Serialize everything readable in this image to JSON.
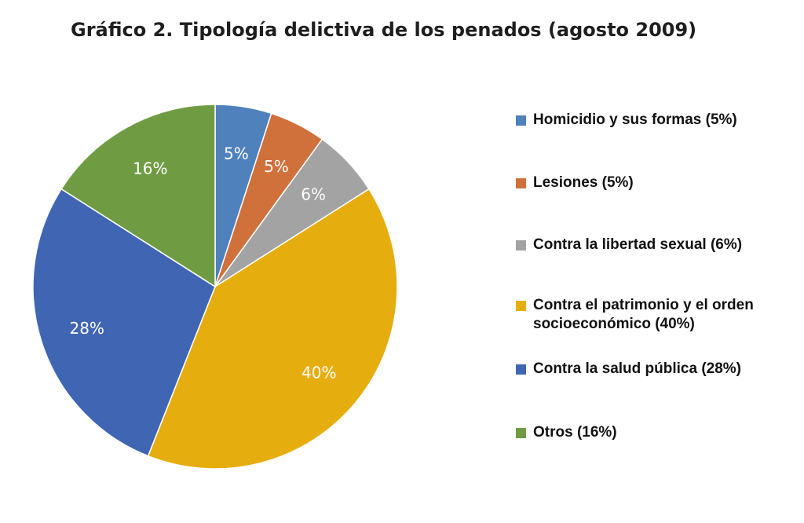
{
  "chart_data": {
    "type": "pie",
    "title": "Gráfico 2. Tipología delictiva de los penados (agosto 2009)",
    "slices": [
      {
        "label": "Homicidio y sus formas (5%)",
        "value": 5,
        "data_label": "5%",
        "color": "#4f81bd"
      },
      {
        "label": "Lesiones (5%)",
        "value": 5,
        "data_label": "5%",
        "color": "#d0703a"
      },
      {
        "label": "Contra la libertad sexual (6%)",
        "value": 6,
        "data_label": "6%",
        "color": "#a3a3a3"
      },
      {
        "label": "Contra el patrimonio y el orden\nsocioeconómico (40%)",
        "value": 40,
        "data_label": "40%",
        "color": "#e6ad0e"
      },
      {
        "label": "Contra la salud pública (28%)",
        "value": 28,
        "data_label": "28%",
        "color": "#4066b3"
      },
      {
        "label": "Otros (16%)",
        "value": 16,
        "data_label": "16%",
        "color": "#6f9c43"
      }
    ],
    "start_angle": "12 o'clock",
    "direction": "clockwise",
    "legend_position": "right"
  }
}
